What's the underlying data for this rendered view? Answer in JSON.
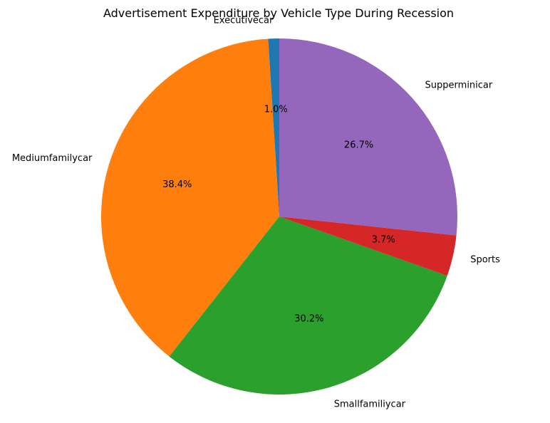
{
  "chart_data": {
    "type": "pie",
    "title": "Advertisement Expenditure by Vehicle Type During Recession",
    "start_angle_deg": 90,
    "direction": "counterclockwise",
    "slices": [
      {
        "label": "Executivecar",
        "value": 1.0,
        "pct_label": "1.0%",
        "color": "#1f77b4"
      },
      {
        "label": "Mediumfamilycar",
        "value": 38.4,
        "pct_label": "38.4%",
        "color": "#ff7f0e"
      },
      {
        "label": "Smallfamiliycar",
        "value": 30.2,
        "pct_label": "30.2%",
        "color": "#2ca02c"
      },
      {
        "label": "Sports",
        "value": 3.7,
        "pct_label": "3.7%",
        "color": "#d62728"
      },
      {
        "label": "Supperminicar",
        "value": 26.7,
        "pct_label": "26.7%",
        "color": "#9467bd"
      }
    ]
  }
}
